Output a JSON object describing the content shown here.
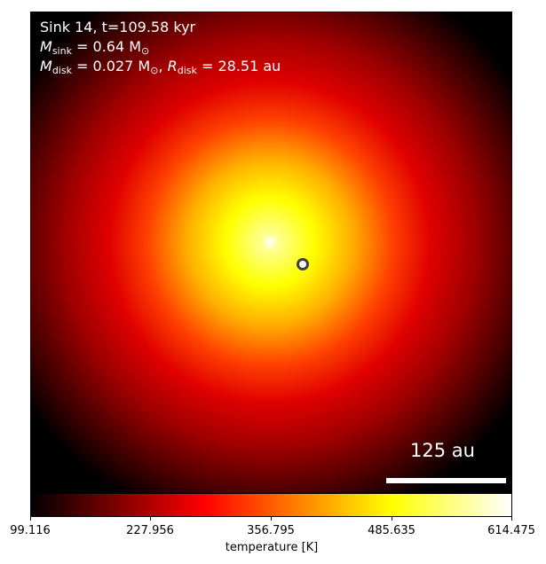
{
  "annotation": {
    "line1": "Sink 14, t=109.58 kyr",
    "sink_mass_symbol": "M",
    "sink_mass_sub": "sink",
    "sink_mass_value": " = 0.64 M",
    "sun_symbol": "⊙",
    "disk_mass_symbol": "M",
    "disk_mass_sub": "disk",
    "disk_mass_value": " = 0.027 M",
    "disk_radius_symbol": "R",
    "disk_radius_sub": "disk",
    "disk_radius_value": " = 28.51 au"
  },
  "scalebar": {
    "label": "125 au"
  },
  "colorbar": {
    "label": "temperature [K]",
    "ticks": [
      "99.116",
      "227.956",
      "356.795",
      "485.635",
      "614.475"
    ],
    "colormap": "hot"
  },
  "colors": {
    "sink_marker_edge": "#404040",
    "text": "#ffffff"
  }
}
